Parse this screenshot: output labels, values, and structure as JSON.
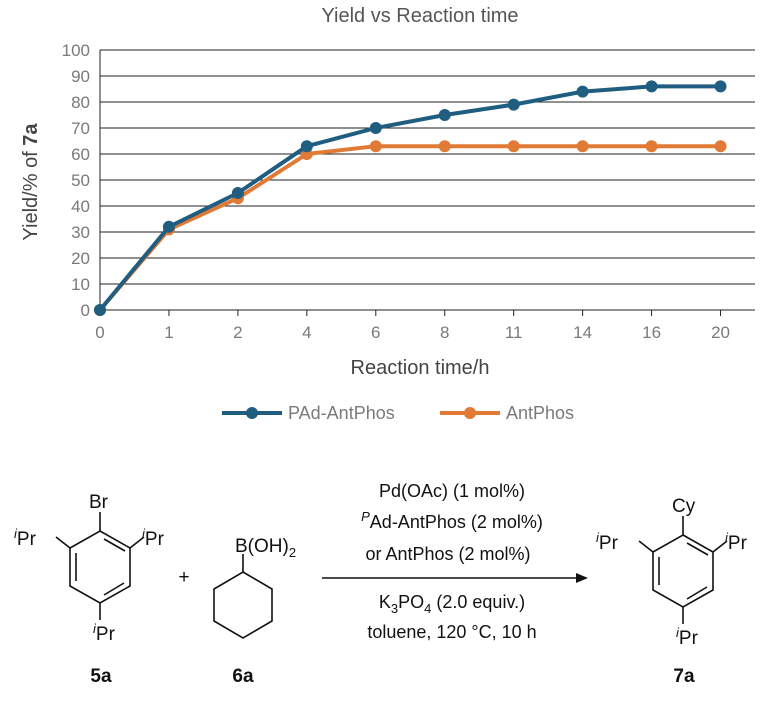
{
  "chart_data": {
    "type": "line",
    "title": "Yield vs Reaction time",
    "xlabel": "Reaction time/h",
    "ylabel_prefix": "Yield/% of ",
    "ylabel_compound": "7a",
    "categories": [
      "0",
      "1",
      "2",
      "4",
      "6",
      "8",
      "11",
      "14",
      "16",
      "20"
    ],
    "ylim": [
      0,
      100
    ],
    "yticks": [
      0,
      10,
      20,
      30,
      40,
      50,
      60,
      70,
      80,
      90,
      100
    ],
    "grid": true,
    "legend_position": "bottom",
    "series": [
      {
        "name": "PAd-AntPhos",
        "color": "#1f5e80",
        "values": [
          0,
          32,
          45,
          63,
          70,
          75,
          79,
          84,
          86,
          86
        ]
      },
      {
        "name": "AntPhos",
        "color": "#e07a35",
        "values": [
          0,
          31,
          43,
          60,
          63,
          63,
          63,
          63,
          63,
          63
        ]
      }
    ]
  },
  "scheme": {
    "reactant1": {
      "substituent": "Br",
      "iPr_sup": "i",
      "iPr": "Pr",
      "label": "5a"
    },
    "plus": "+",
    "reactant2": {
      "group_prefix": "B(OH)",
      "group_sub": "2",
      "label": "6a"
    },
    "conditions_above": {
      "line1": "Pd(OAc) (1 mol%)",
      "line2_sup": "P",
      "line2": "Ad-AntPhos (2 mol%)",
      "line3": "or AntPhos (2 mol%)"
    },
    "conditions_below": {
      "line1_a": "K",
      "line1_sub1": "3",
      "line1_b": "PO",
      "line1_sub2": "4",
      "line1_c": " (2.0 equiv.)",
      "line2": "toluene, 120 °C, 10 h"
    },
    "product": {
      "substituent": "Cy",
      "label": "7a"
    }
  }
}
